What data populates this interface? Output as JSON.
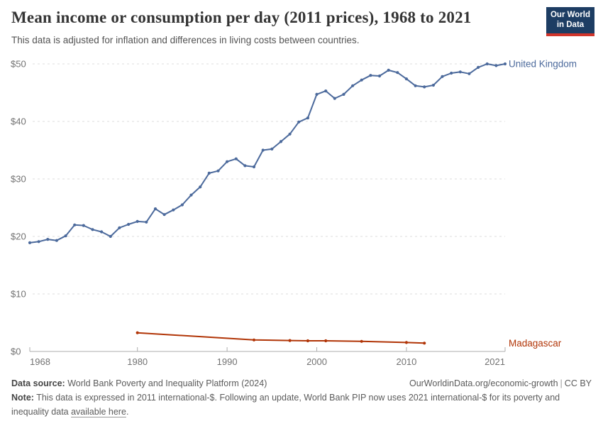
{
  "header": {
    "title": "Mean income or consumption per day (2011 prices), 1968 to 2021",
    "subtitle": "This data is adjusted for inflation and differences in living costs between countries.",
    "logo": {
      "line1": "Our World",
      "line2": "in Data",
      "bg_color": "#1d3d63",
      "bar_color": "#d1352b"
    }
  },
  "chart_data": {
    "type": "line",
    "title": "Mean income or consumption per day (2011 prices), 1968 to 2021",
    "xlabel": "",
    "ylabel": "",
    "x_range": [
      1968,
      2021
    ],
    "ylim": [
      0,
      50
    ],
    "grid": "horizontal-dashed",
    "legend_position": "end-of-line-labels",
    "x_ticks": [
      1968,
      1980,
      1990,
      2000,
      2010,
      2021
    ],
    "y_ticks": [
      0,
      10,
      20,
      30,
      40,
      50
    ],
    "y_tick_prefix": "$",
    "series": [
      {
        "name": "United Kingdom",
        "color": "#4c6a9c",
        "x": [
          1968,
          1969,
          1970,
          1971,
          1972,
          1973,
          1974,
          1975,
          1976,
          1977,
          1978,
          1979,
          1980,
          1981,
          1982,
          1983,
          1984,
          1985,
          1986,
          1987,
          1988,
          1989,
          1990,
          1991,
          1992,
          1993,
          1994,
          1995,
          1996,
          1997,
          1998,
          1999,
          2000,
          2001,
          2002,
          2003,
          2004,
          2005,
          2006,
          2007,
          2008,
          2009,
          2010,
          2011,
          2012,
          2013,
          2014,
          2015,
          2016,
          2017,
          2018,
          2019,
          2020,
          2021
        ],
        "values": [
          18.9,
          19.1,
          19.5,
          19.3,
          20.1,
          22.0,
          21.9,
          21.2,
          20.8,
          20.0,
          21.5,
          22.1,
          22.6,
          22.5,
          24.8,
          23.8,
          24.6,
          25.5,
          27.2,
          28.6,
          31.0,
          31.4,
          33.0,
          33.5,
          32.3,
          32.1,
          35.0,
          35.2,
          36.5,
          37.8,
          39.9,
          40.6,
          44.7,
          45.3,
          44.0,
          44.7,
          46.2,
          47.2,
          48.0,
          47.9,
          48.9,
          48.5,
          47.4,
          46.2,
          46.0,
          46.3,
          47.8,
          48.4,
          48.6,
          48.3,
          49.4,
          50.0,
          49.7,
          50.0
        ]
      },
      {
        "name": "Madagascar",
        "color": "#b13507",
        "x": [
          1980,
          1993,
          1997,
          1999,
          2001,
          2005,
          2010,
          2012
        ],
        "values": [
          3.25,
          2.0,
          1.9,
          1.85,
          1.85,
          1.75,
          1.55,
          1.45
        ]
      }
    ],
    "style": {
      "gridline_color": "#dcdcdc",
      "axis_color": "#adadad",
      "tick_label_color": "#727272"
    }
  },
  "footer": {
    "source_label": "Data source:",
    "source_text": "World Bank Poverty and Inequality Platform (2024)",
    "attribution_link": "OurWorldinData.org/economic-growth",
    "attribution_separator": "|",
    "license": "CC BY",
    "note_label": "Note:",
    "note_before_link": "This data is expressed in 2011 international-$. Following an update, World Bank PIP now uses 2021 international-$ for its poverty and inequality data ",
    "note_link_text": "available here",
    "note_after_link": "."
  }
}
